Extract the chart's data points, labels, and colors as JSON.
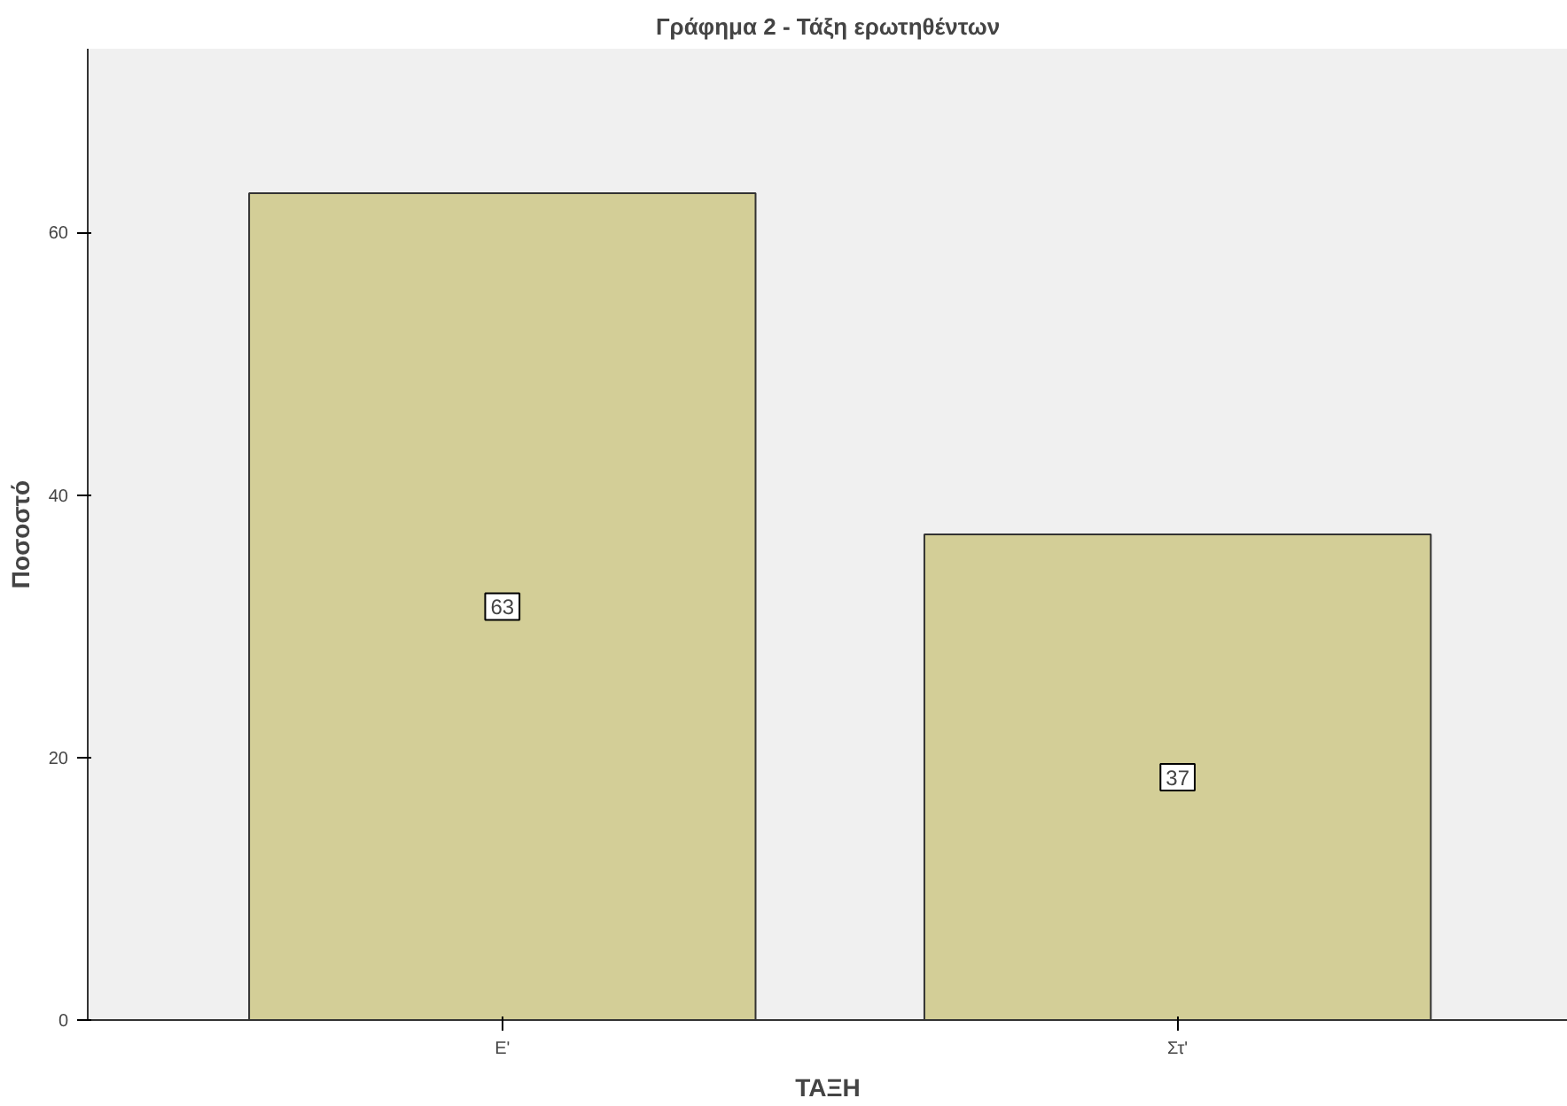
{
  "chart_data": {
    "type": "bar",
    "title": "Γράφημα 2 - Τάξη ερωτηθέντων",
    "xlabel": "ΤΑΞΗ",
    "ylabel": "Ποσοστό",
    "categories": [
      "Ε'",
      "Στ'"
    ],
    "values": [
      63,
      37
    ],
    "color": "#d3ce97",
    "ylim": [
      0,
      74
    ],
    "yticks": [
      0,
      20,
      40,
      60
    ],
    "grid": false,
    "data_labels": true
  }
}
